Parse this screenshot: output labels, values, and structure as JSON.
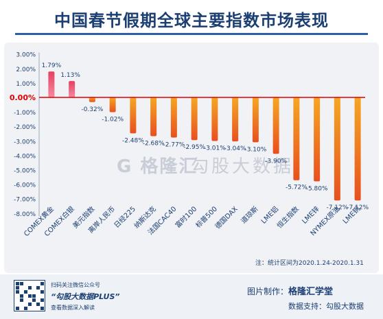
{
  "title": "中国春节假期全球主要指数市场表现",
  "note": "注：统计区间为2020.1.24-2020.1.31",
  "watermark": {
    "brand": "格隆汇",
    "product": "勾股大数据"
  },
  "footer": {
    "scan_text": "扫码关注微信公众号",
    "account": "“勾股大数据PLUS”",
    "desc": "查看数据深入解读",
    "credit_label": "图片制作：",
    "credit_value": "格隆汇学堂",
    "support_label": "数据支持：",
    "support_value": "勾股大数据"
  },
  "colors": {
    "positive": "#e64b68",
    "negative": "#f07a2a",
    "zero_line": "#e00000",
    "axis_text": "#1b3f73"
  },
  "chart_data": {
    "type": "bar",
    "categories": [
      "COMEX黄金",
      "COMEX白银",
      "美元指数",
      "离岸人民币",
      "日经225",
      "纳斯达克",
      "法国CAC40",
      "富时100",
      "标普500",
      "德国DAX",
      "道琼斯",
      "LME铝",
      "恒生指数",
      "LME锌",
      "NYMEX原油",
      "LME铜"
    ],
    "values": [
      1.79,
      1.13,
      -0.32,
      -1.02,
      -2.48,
      -2.68,
      -2.77,
      -2.95,
      -3.01,
      -3.04,
      -3.1,
      -3.9,
      -5.72,
      -5.8,
      -7.12,
      -7.12
    ],
    "labels": [
      "1.79%",
      "1.13%",
      "-0.32%",
      "-1.02%",
      "-2.48%",
      "-2.68%",
      "-2.77%",
      "-2.95%",
      "-3.01%",
      "-3.04%",
      "-3.10%",
      "-3.90%",
      "-5.72%",
      "-5.80%",
      "-7.12%",
      "-7.12%"
    ],
    "yticks": [
      "3.00%",
      "2.00%",
      "1.00%",
      "0.00%",
      "-1.00%",
      "-2.00%",
      "-3.00%",
      "-4.00%",
      "-5.00%",
      "-6.00%",
      "-7.00%",
      "-8.00%"
    ],
    "ytick_values": [
      3,
      2,
      1,
      0,
      -1,
      -2,
      -3,
      -4,
      -5,
      -6,
      -7,
      -8
    ],
    "ylim": [
      -8.4,
      3.2
    ],
    "xlabel": "",
    "ylabel": "",
    "grid": false
  }
}
